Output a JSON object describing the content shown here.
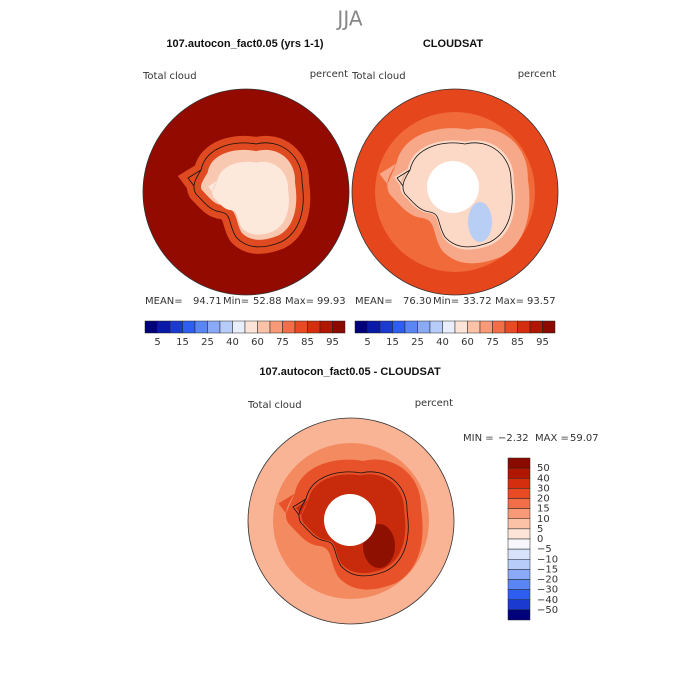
{
  "title": "JJA",
  "panels": [
    {
      "title": "107.autocon_fact0.05 (yrs 1-1)",
      "variable": "Total cloud",
      "units": "percent",
      "stats": {
        "mean_label": "MEAN=",
        "mean": "94.71",
        "min_label": "Min=",
        "min": "52.88",
        "max_label": "Max=",
        "max": "99.93"
      },
      "colorbar_labels": [
        "5",
        "15",
        "25",
        "40",
        "60",
        "75",
        "85",
        "95"
      ]
    },
    {
      "title": "CLOUDSAT",
      "variable": "Total cloud",
      "units": "percent",
      "stats": {
        "mean_label": "MEAN=",
        "mean": "76.30",
        "min_label": "Min=",
        "min": "33.72",
        "max_label": "Max=",
        "max": "93.57"
      },
      "colorbar_labels": [
        "5",
        "15",
        "25",
        "40",
        "60",
        "75",
        "85",
        "95"
      ]
    }
  ],
  "difference": {
    "title": "107.autocon_fact0.05 - CLOUDSAT",
    "variable": "Total cloud",
    "units": "percent",
    "stats": {
      "min_label": "MIN =",
      "min": "−2.32",
      "max_label": "MAX =",
      "max": "59.07"
    },
    "colorbar_labels": [
      "50",
      "40",
      "30",
      "20",
      "15",
      "10",
      "5",
      "0",
      "−5",
      "−10",
      "−15",
      "−20",
      "−30",
      "−40",
      "−50"
    ]
  }
}
